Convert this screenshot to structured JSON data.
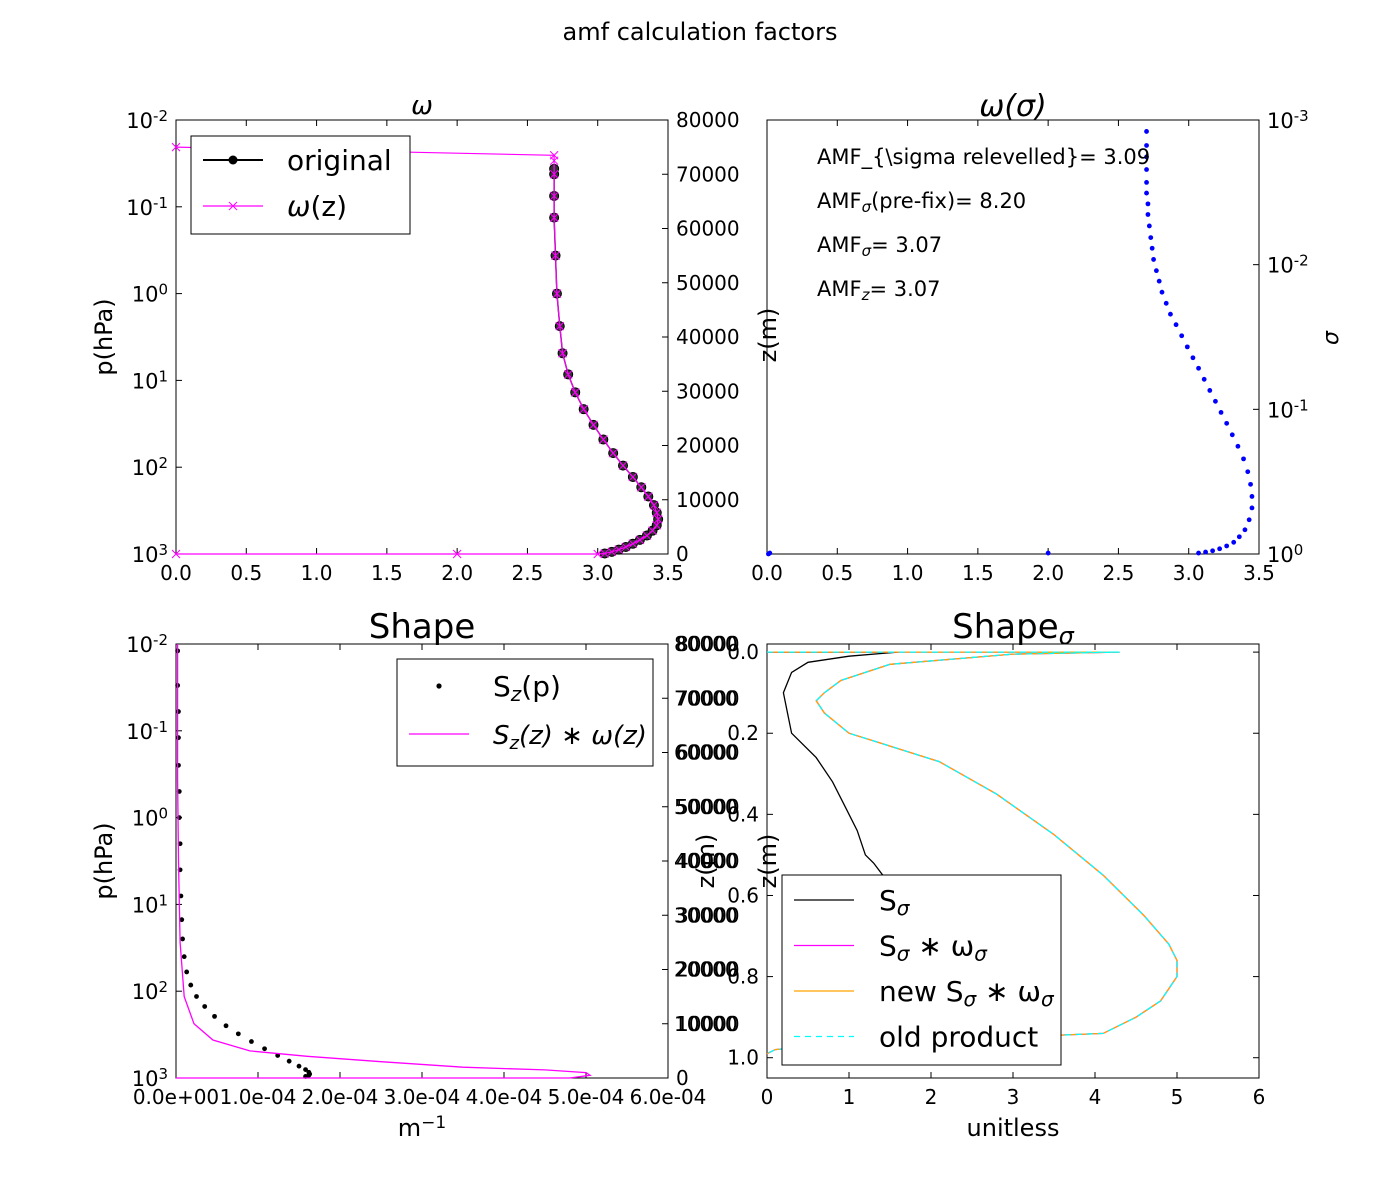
{
  "figure": {
    "suptitle": "amf calculation factors"
  },
  "chart_data": [
    {
      "id": "omega",
      "type": "line",
      "title": "ω",
      "xlabel": "",
      "ylabel": "p(hPa)",
      "ylabel_right": "",
      "xlim": [
        0,
        3.5
      ],
      "xticks": [
        "0.0",
        "0.5",
        "1.0",
        "1.5",
        "2.0",
        "2.5",
        "3.0",
        "3.5"
      ],
      "y_left_scale": "log",
      "y_left_inverted": true,
      "y_left_ticks": [
        {
          "base": "10",
          "exp": "-2",
          "value": 0.01
        },
        {
          "base": "10",
          "exp": "-1",
          "value": 0.1
        },
        {
          "base": "10",
          "exp": "0",
          "value": 1
        },
        {
          "base": "10",
          "exp": "1",
          "value": 10
        },
        {
          "base": "10",
          "exp": "2",
          "value": 100
        },
        {
          "base": "10",
          "exp": "3",
          "value": 1000
        }
      ],
      "y_right_lim": [
        0,
        80000
      ],
      "y_right_ticks": [
        "0",
        "10000",
        "20000",
        "30000",
        "40000",
        "50000",
        "60000",
        "70000",
        "80000"
      ],
      "legend": {
        "position": "upper-left",
        "entries": [
          {
            "label": "original",
            "color": "#000000",
            "marker": "circle"
          },
          {
            "label_base": "ω",
            "label_sub": "",
            "label_tail": "(z)",
            "color": "#ff00ff",
            "marker": "x"
          }
        ]
      },
      "series": [
        {
          "name": "original",
          "axis": "right",
          "color": "#000000",
          "marker": "circle",
          "x": [
            3.05,
            3.1,
            3.15,
            3.2,
            3.25,
            3.3,
            3.35,
            3.39,
            3.42,
            3.43,
            3.42,
            3.4,
            3.36,
            3.31,
            3.25,
            3.18,
            3.11,
            3.04,
            2.97,
            2.9,
            2.84,
            2.79,
            2.75,
            2.73,
            2.71,
            2.7,
            2.69,
            2.69,
            2.69,
            2.69
          ],
          "y": [
            100,
            400,
            800,
            1300,
            1900,
            2600,
            3400,
            4300,
            5300,
            6400,
            7600,
            9000,
            10600,
            12300,
            14200,
            16300,
            18600,
            21100,
            23800,
            26700,
            29800,
            33100,
            37000,
            42000,
            48000,
            55000,
            62000,
            66000,
            70000,
            71000
          ]
        },
        {
          "name": "ω(z)",
          "axis": "right",
          "color": "#ff00ff",
          "marker": "x",
          "x": [
            0.0,
            2.0,
            3.0,
            3.05,
            3.1,
            3.15,
            3.2,
            3.25,
            3.3,
            3.35,
            3.39,
            3.42,
            3.43,
            3.42,
            3.4,
            3.36,
            3.31,
            3.25,
            3.18,
            3.11,
            3.04,
            2.97,
            2.9,
            2.84,
            2.79,
            2.75,
            2.73,
            2.71,
            2.7,
            2.69,
            2.69,
            2.69,
            2.69,
            2.69,
            0.0
          ],
          "y": [
            0,
            0,
            0,
            100,
            400,
            800,
            1300,
            1900,
            2600,
            3400,
            4300,
            5300,
            6400,
            7600,
            9000,
            10600,
            12300,
            14200,
            16300,
            18600,
            21100,
            23800,
            26700,
            29800,
            33100,
            37000,
            42000,
            48000,
            55000,
            62000,
            66000,
            70000,
            72500,
            73500,
            75000
          ]
        }
      ]
    },
    {
      "id": "omega_sigma",
      "type": "scatter",
      "title": "ω(σ)",
      "xlabel": "",
      "ylabel": "z(m)",
      "ylabel_right": "σ",
      "xlim": [
        0,
        3.5
      ],
      "xticks": [
        "0.0",
        "0.5",
        "1.0",
        "1.5",
        "2.0",
        "2.5",
        "3.0",
        "3.5"
      ],
      "y_right_scale": "log",
      "y_right_inverted": true,
      "y_right_ticks": [
        {
          "base": "10",
          "exp": "-3",
          "value": 0.001
        },
        {
          "base": "10",
          "exp": "-2",
          "value": 0.01
        },
        {
          "base": "10",
          "exp": "-1",
          "value": 0.1
        },
        {
          "base": "10",
          "exp": "0",
          "value": 1
        }
      ],
      "annotations": [
        {
          "base": "AMF_{\\sigma relevelled}= 3.09",
          "sub": "",
          "tail": ""
        },
        {
          "base": "AMF",
          "sub": "σ",
          "tail": "(pre-fix)= 8.20"
        },
        {
          "base": "AMF",
          "sub": "σ",
          "tail": "= 3.07"
        },
        {
          "base": "AMF",
          "sub": "z",
          "tail": "= 3.07"
        }
      ],
      "series": [
        {
          "name": "",
          "color": "#0000ff",
          "marker": "dot",
          "x": [
            0.01,
            0.02,
            2.0,
            3.07,
            3.12,
            3.17,
            3.22,
            3.27,
            3.32,
            3.36,
            3.4,
            3.43,
            3.45,
            3.45,
            3.44,
            3.42,
            3.39,
            3.35,
            3.31,
            3.27,
            3.23,
            3.19,
            3.15,
            3.11,
            3.07,
            3.03,
            2.99,
            2.95,
            2.91,
            2.87,
            2.84,
            2.81,
            2.79,
            2.77,
            2.75,
            2.74,
            2.73,
            2.72,
            2.71,
            2.71,
            2.7,
            2.7,
            2.7,
            2.7,
            2.7,
            2.7
          ],
          "y": [
            0.999,
            0.985,
            0.985,
            0.985,
            0.97,
            0.95,
            0.92,
            0.88,
            0.83,
            0.76,
            0.68,
            0.58,
            0.48,
            0.4,
            0.33,
            0.27,
            0.22,
            0.18,
            0.15,
            0.125,
            0.105,
            0.088,
            0.074,
            0.062,
            0.052,
            0.044,
            0.037,
            0.031,
            0.026,
            0.022,
            0.0185,
            0.0155,
            0.013,
            0.011,
            0.0092,
            0.0077,
            0.0065,
            0.0054,
            0.0045,
            0.0038,
            0.0032,
            0.0027,
            0.0022,
            0.0018,
            0.0015,
            0.0012
          ]
        }
      ]
    },
    {
      "id": "shape",
      "type": "line",
      "title": "Shape",
      "xlabel_base": "m",
      "xlabel_sup": "−1",
      "ylabel": "p(hPa)",
      "ylabel_right": "z(m)",
      "xlim": [
        0,
        0.0006
      ],
      "xticks": [
        "0.0e+00",
        "1.0e-04",
        "2.0e-04",
        "3.0e-04",
        "4.0e-04",
        "5.0e-04",
        "6.0e-04"
      ],
      "y_left_scale": "log",
      "y_left_inverted": true,
      "y_left_ticks": [
        {
          "base": "10",
          "exp": "-2",
          "value": 0.01
        },
        {
          "base": "10",
          "exp": "-1",
          "value": 0.1
        },
        {
          "base": "10",
          "exp": "0",
          "value": 1
        },
        {
          "base": "10",
          "exp": "1",
          "value": 10
        },
        {
          "base": "10",
          "exp": "2",
          "value": 100
        },
        {
          "base": "10",
          "exp": "3",
          "value": 1000
        }
      ],
      "y_right_lim": [
        0,
        80000
      ],
      "y_right_ticks": [
        "0",
        "10000",
        "20000",
        "30000",
        "40000",
        "50000",
        "60000",
        "70000",
        "80000"
      ],
      "legend": {
        "position": "upper-right",
        "entries": [
          {
            "label_base": "S",
            "label_sub": "z",
            "label_tail": "(p)",
            "color": "#000000",
            "marker": "dot"
          },
          {
            "label_base": "S",
            "label_sub": "z",
            "label_tail": "(z) ∗ ω(z)",
            "italic": true,
            "color": "#ff00ff",
            "marker": "line"
          }
        ]
      },
      "series": [
        {
          "name": "S_z(p)",
          "axis": "left",
          "color": "#000000",
          "marker": "dot",
          "x": [
            2e-06,
            2e-06,
            3e-06,
            3e-06,
            3e-06,
            4e-06,
            4e-06,
            5e-06,
            5e-06,
            6e-06,
            7e-06,
            8e-06,
            1e-05,
            1.3e-05,
            1.8e-05,
            2.5e-05,
            3.5e-05,
            4.7e-05,
            6.1e-05,
            7.6e-05,
            9.2e-05,
            0.000108,
            0.000124,
            0.000138,
            0.00015,
            0.000158,
            0.000162,
            0.000163,
            0.000162,
            0.000158
          ],
          "y": [
            0.012,
            0.03,
            0.06,
            0.12,
            0.25,
            0.5,
            1,
            2,
            4,
            8,
            15,
            25,
            40,
            60,
            85,
            115,
            150,
            195,
            250,
            310,
            380,
            460,
            550,
            640,
            730,
            800,
            860,
            900,
            930,
            960
          ]
        },
        {
          "name": "S_z(z)*ω(z)",
          "axis": "right",
          "color": "#ff00ff",
          "marker": "line",
          "x": [
            0,
            0.00048,
            0.000505,
            0.0005,
            0.00045,
            0.00035,
            0.00025,
            0.00016,
            9e-05,
            4.5e-05,
            2.2e-05,
            1e-05,
            5e-06,
            3e-06,
            2e-06,
            2e-06,
            2e-06
          ],
          "y": [
            0,
            0,
            500,
            1000,
            1500,
            2000,
            3000,
            4000,
            5000,
            7000,
            10000,
            15000,
            25000,
            40000,
            55000,
            70000,
            80000
          ]
        }
      ]
    },
    {
      "id": "shape_sigma",
      "type": "line",
      "title_base": "Shape",
      "title_sub": "σ",
      "xlabel": "unitless",
      "ylabel": "z(m)",
      "xlim": [
        0,
        6
      ],
      "xticks": [
        "0",
        "1",
        "2",
        "3",
        "4",
        "5",
        "6"
      ],
      "ylim": [
        -0.02,
        1.05
      ],
      "y_inverted": true,
      "yticks": [
        "0.0",
        "0.2",
        "0.4",
        "0.6",
        "0.8",
        "1.0"
      ],
      "y_right_overlap_ticks": [
        "80000",
        "70000",
        "60000",
        "50000",
        "40000",
        "30000",
        "20000",
        "10000"
      ],
      "legend": {
        "position": "lower-left",
        "entries": [
          {
            "label_base": "S",
            "label_sub": "σ",
            "label_tail": "",
            "color": "#000000",
            "style": "solid"
          },
          {
            "label_base": "S",
            "label_sub": "σ",
            "label_tail": " ∗ ω",
            "label_sub2": "σ",
            "color": "#ff00ff",
            "style": "solid"
          },
          {
            "label_base": "new S",
            "label_sub": "σ",
            "label_tail": " ∗ ω",
            "label_sub2": "σ",
            "color": "#ffa500",
            "style": "solid"
          },
          {
            "label_base": "old product",
            "label_sub": "",
            "label_tail": "",
            "color": "#00ffff",
            "style": "dashed"
          }
        ]
      },
      "series": [
        {
          "name": "S_σ",
          "color": "#000000",
          "style": "solid",
          "x": [
            0,
            1.6,
            1.0,
            0.5,
            0.3,
            0.2,
            0.25,
            0.3,
            0.6,
            0.8,
            0.95,
            1.1,
            1.2,
            1.3,
            1.45
          ],
          "y": [
            0.0,
            0.0,
            0.01,
            0.025,
            0.05,
            0.1,
            0.15,
            0.2,
            0.26,
            0.32,
            0.38,
            0.44,
            0.5,
            0.52,
            0.56
          ]
        },
        {
          "name": "S_σ*ω_σ",
          "color": "#ff00ff",
          "style": "solid",
          "x": [
            0,
            4.3,
            3.0,
            1.5,
            0.9,
            0.7,
            0.6,
            0.7,
            1.0,
            2.1,
            2.8,
            3.5,
            4.1,
            4.6,
            4.9,
            5.0,
            5.0,
            4.8,
            4.5,
            4.1,
            3.5,
            2.7,
            1.5,
            0.6,
            0.1,
            0.0
          ],
          "y": [
            0.0,
            0.0,
            0.005,
            0.03,
            0.07,
            0.1,
            0.12,
            0.15,
            0.2,
            0.27,
            0.35,
            0.45,
            0.55,
            0.65,
            0.72,
            0.76,
            0.8,
            0.86,
            0.9,
            0.94,
            0.945,
            0.95,
            0.96,
            0.97,
            0.98,
            0.99
          ]
        },
        {
          "name": "new S_σ*ω_σ",
          "color": "#ffa500",
          "style": "solid",
          "x": [
            0,
            4.3,
            3.0,
            1.5,
            0.9,
            0.7,
            0.6,
            0.7,
            1.0,
            2.1,
            2.8,
            3.5,
            4.1,
            4.6,
            4.9,
            5.0,
            5.0,
            4.8,
            4.5,
            4.1,
            3.5,
            2.7,
            1.5,
            0.6,
            0.1,
            0.0
          ],
          "y": [
            0.0,
            0.0,
            0.005,
            0.03,
            0.07,
            0.1,
            0.12,
            0.15,
            0.2,
            0.27,
            0.35,
            0.45,
            0.55,
            0.65,
            0.72,
            0.76,
            0.8,
            0.86,
            0.9,
            0.94,
            0.945,
            0.95,
            0.96,
            0.97,
            0.98,
            0.99
          ]
        },
        {
          "name": "old product",
          "color": "#00ffff",
          "style": "dashed",
          "x": [
            0,
            4.3,
            3.0,
            1.5,
            0.9,
            0.7,
            0.6,
            0.7,
            1.0,
            2.1,
            2.8,
            3.5,
            4.1,
            4.6,
            4.9,
            5.0,
            5.0,
            4.8,
            4.5,
            4.1,
            3.5,
            2.7,
            1.5,
            0.6,
            0.1,
            0.0
          ],
          "y": [
            0.0,
            0.0,
            0.005,
            0.03,
            0.07,
            0.1,
            0.12,
            0.15,
            0.2,
            0.27,
            0.35,
            0.45,
            0.55,
            0.65,
            0.72,
            0.76,
            0.8,
            0.86,
            0.9,
            0.94,
            0.945,
            0.95,
            0.96,
            0.97,
            0.98,
            0.99
          ]
        }
      ]
    }
  ]
}
